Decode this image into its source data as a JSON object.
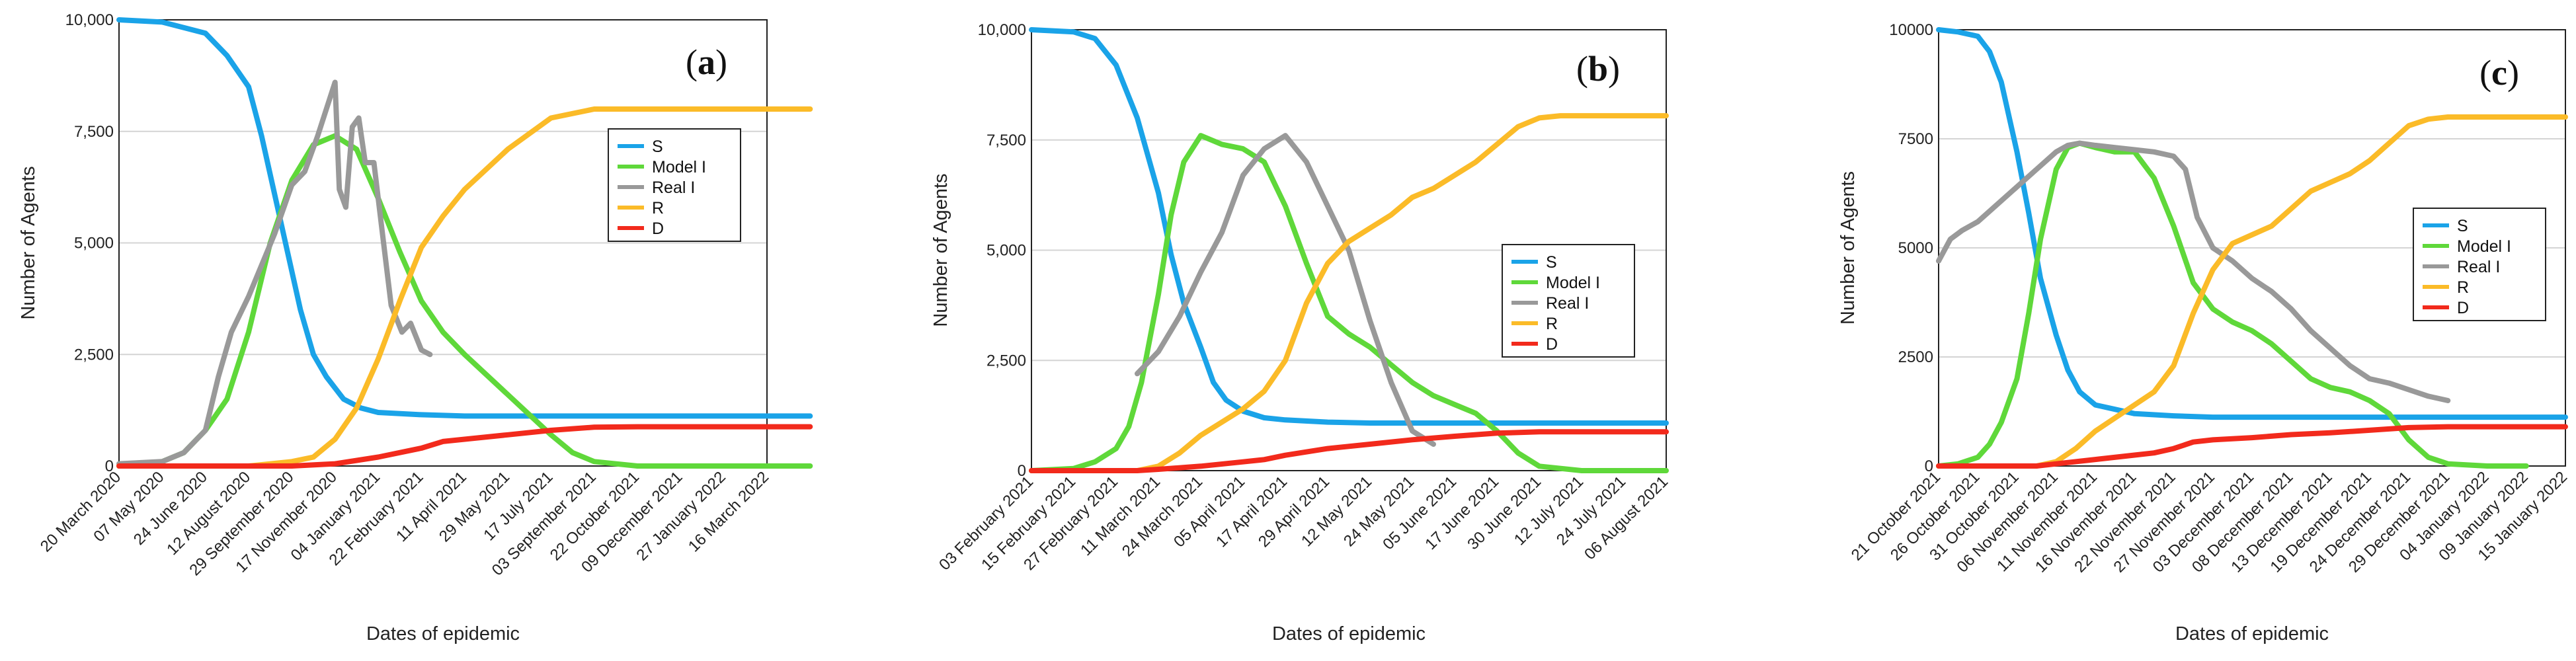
{
  "chart_data": [
    {
      "type": "line",
      "panel_label": "a",
      "xlabel": "Dates of epidemic",
      "ylabel": "Number of Agents",
      "ylim": [
        0,
        10000
      ],
      "grid": true,
      "legend_position": "middle-right",
      "y_ticks": [
        "0",
        "2,500",
        "5,000",
        "7,500",
        "10,000"
      ],
      "x_ticks": [
        "20 March 2020",
        "07 May 2020",
        "24 June 2020",
        "12 August 2020",
        "29 September 2020",
        "17 November 2020",
        "04 January 2021",
        "22 February 2021",
        "11 April 2021",
        "29 May 2021",
        "17 July 2021",
        "03 September 2021",
        "22 October 2021",
        "09 December 2021",
        "27 January 2022",
        "16 March 2022"
      ],
      "series": [
        {
          "name": "S",
          "color": "#1aa3e8",
          "x": [
            0,
            1,
            2,
            2.5,
            3,
            3.3,
            3.6,
            3.9,
            4.2,
            4.5,
            4.8,
            5.2,
            5.6,
            6,
            7,
            8,
            16
          ],
          "y": [
            10000,
            9950,
            9700,
            9200,
            8500,
            7400,
            6100,
            4800,
            3500,
            2500,
            2000,
            1500,
            1300,
            1200,
            1150,
            1120,
            1120
          ]
        },
        {
          "name": "Model I",
          "color": "#5fd83a",
          "x": [
            0,
            1,
            1.5,
            2,
            2.5,
            3,
            3.5,
            4,
            4.5,
            5,
            5.5,
            6,
            6.5,
            7,
            7.5,
            8,
            9,
            10,
            10.5,
            11,
            12,
            13,
            16
          ],
          "y": [
            0,
            100,
            300,
            800,
            1500,
            3000,
            5000,
            6400,
            7200,
            7400,
            7100,
            6000,
            4800,
            3700,
            3000,
            2500,
            1600,
            700,
            300,
            100,
            0,
            0,
            0
          ]
        },
        {
          "name": "Real I",
          "color": "#999999",
          "x": [
            0,
            1,
            1.5,
            2,
            2.3,
            2.6,
            3,
            3.3,
            3.6,
            4,
            4.3,
            4.6,
            5,
            5.1,
            5.25,
            5.4,
            5.55,
            5.7,
            5.9,
            6.1,
            6.3,
            6.55,
            6.75,
            7,
            7.2
          ],
          "y": [
            50,
            100,
            300,
            800,
            2000,
            3000,
            3800,
            4500,
            5200,
            6300,
            6600,
            7400,
            8600,
            6200,
            5800,
            7600,
            7800,
            6800,
            6800,
            5200,
            3600,
            3000,
            3200,
            2600,
            2500
          ]
        },
        {
          "name": "R",
          "color": "#fbbb28",
          "x": [
            0,
            3,
            4,
            4.5,
            5,
            5.5,
            6,
            6.5,
            7,
            7.5,
            8,
            9,
            10,
            11,
            11.5,
            12,
            16
          ],
          "y": [
            0,
            0,
            100,
            200,
            600,
            1300,
            2400,
            3700,
            4900,
            5600,
            6200,
            7100,
            7800,
            8000,
            8000,
            8000,
            8000
          ]
        },
        {
          "name": "D",
          "color": "#f22a1c",
          "x": [
            0,
            4,
            5,
            6,
            7,
            7.5,
            8,
            9,
            10,
            11,
            12,
            13,
            16
          ],
          "y": [
            0,
            0,
            50,
            200,
            400,
            550,
            600,
            700,
            800,
            870,
            880,
            880,
            880
          ]
        }
      ]
    },
    {
      "type": "line",
      "panel_label": "b",
      "xlabel": "Dates of epidemic",
      "ylabel": "Number of Agents",
      "ylim": [
        0,
        10000
      ],
      "grid": true,
      "legend_position": "lower-right",
      "y_ticks": [
        "0",
        "2,500",
        "5,000",
        "7,500",
        "10,000"
      ],
      "x_ticks": [
        "03 February 2021",
        "15 February 2021",
        "27 February 2021",
        "11 March 2021",
        "24 March 2021",
        "05 April 2021",
        "17 April 2021",
        "29 April 2021",
        "12 May 2021",
        "24 May 2021",
        "05 June 2021",
        "17 June 2021",
        "30 June 2021",
        "12 July 2021",
        "24 July 2021",
        "06 August 2021"
      ],
      "series": [
        {
          "name": "S",
          "color": "#1aa3e8",
          "x": [
            0,
            1,
            1.5,
            2,
            2.5,
            3,
            3.3,
            3.6,
            4,
            4.3,
            4.6,
            5,
            5.5,
            6,
            7,
            8,
            15
          ],
          "y": [
            10000,
            9950,
            9800,
            9200,
            8000,
            6300,
            4900,
            3800,
            2800,
            2000,
            1600,
            1350,
            1200,
            1150,
            1100,
            1080,
            1080
          ]
        },
        {
          "name": "Model I",
          "color": "#5fd83a",
          "x": [
            0,
            1,
            1.5,
            2,
            2.3,
            2.6,
            3,
            3.3,
            3.6,
            4,
            4.5,
            5,
            5.5,
            6,
            6.5,
            7,
            7.5,
            8,
            8.5,
            9,
            9.5,
            10,
            10.5,
            11,
            11.5,
            12,
            13,
            15
          ],
          "y": [
            0,
            50,
            200,
            500,
            1000,
            2000,
            4000,
            5800,
            7000,
            7600,
            7400,
            7300,
            7000,
            6000,
            4700,
            3500,
            3100,
            2800,
            2400,
            2000,
            1700,
            1500,
            1300,
            900,
            400,
            100,
            0,
            0
          ]
        },
        {
          "name": "Real I",
          "color": "#999999",
          "x": [
            2.5,
            3,
            3.5,
            4,
            4.5,
            5,
            5.5,
            6,
            6.5,
            7,
            7.5,
            8,
            8.5,
            9,
            9.5
          ],
          "y": [
            2200,
            2700,
            3500,
            4500,
            5400,
            6700,
            7300,
            7600,
            7000,
            6000,
            5000,
            3400,
            2000,
            900,
            600
          ]
        },
        {
          "name": "R",
          "color": "#fbbb28",
          "x": [
            0,
            2.5,
            3,
            3.5,
            4,
            4.5,
            5,
            5.5,
            6,
            6.5,
            7,
            7.5,
            8,
            8.5,
            9,
            9.5,
            10,
            10.5,
            11,
            11.5,
            12,
            12.5,
            13,
            15
          ],
          "y": [
            0,
            0,
            100,
            400,
            800,
            1100,
            1400,
            1800,
            2500,
            3800,
            4700,
            5200,
            5500,
            5800,
            6200,
            6400,
            6700,
            7000,
            7400,
            7800,
            8000,
            8050,
            8050,
            8050
          ]
        },
        {
          "name": "D",
          "color": "#f22a1c",
          "x": [
            0,
            2.5,
            3,
            4,
            5,
            5.5,
            6,
            7,
            8,
            9,
            10,
            11,
            12,
            13,
            15
          ],
          "y": [
            0,
            0,
            30,
            100,
            200,
            250,
            350,
            500,
            600,
            700,
            780,
            850,
            880,
            880,
            880
          ]
        }
      ]
    },
    {
      "type": "line",
      "panel_label": "c",
      "xlabel": "Dates of epidemic",
      "ylabel": "Number of Agents",
      "ylim": [
        0,
        10000
      ],
      "grid": true,
      "legend_position": "middle-right",
      "y_ticks": [
        "0",
        "2500",
        "5000",
        "7500",
        "10000"
      ],
      "x_ticks": [
        "21 October 2021",
        "26 October 2021",
        "31 October 2021",
        "06 November 2021",
        "11 November 2021",
        "16 November 2021",
        "22 November 2021",
        "27 November 2021",
        "03 December 2021",
        "08 December 2021",
        "13 December 2021",
        "19 December 2021",
        "24 December 2021",
        "29 December 2021",
        "04 January 2022",
        "09 January 2022",
        "15 January 2022"
      ],
      "series": [
        {
          "name": "S",
          "color": "#1aa3e8",
          "x": [
            0,
            0.5,
            1,
            1.3,
            1.6,
            2,
            2.3,
            2.6,
            3,
            3.3,
            3.6,
            4,
            4.5,
            5,
            6,
            7,
            16
          ],
          "y": [
            10000,
            9950,
            9850,
            9500,
            8800,
            7200,
            5800,
            4300,
            3000,
            2200,
            1700,
            1400,
            1300,
            1200,
            1150,
            1120,
            1120
          ]
        },
        {
          "name": "Model I",
          "color": "#5fd83a",
          "x": [
            0,
            0.5,
            1,
            1.3,
            1.6,
            2,
            2.3,
            2.6,
            3,
            3.3,
            3.6,
            4,
            4.5,
            5,
            5.5,
            6,
            6.5,
            7,
            7.5,
            8,
            8.5,
            9,
            9.5,
            10,
            10.5,
            11,
            11.5,
            12,
            12.5,
            13,
            14,
            15
          ],
          "y": [
            0,
            50,
            200,
            500,
            1000,
            2000,
            3500,
            5200,
            6800,
            7300,
            7400,
            7300,
            7200,
            7200,
            6600,
            5500,
            4200,
            3600,
            3300,
            3100,
            2800,
            2400,
            2000,
            1800,
            1700,
            1500,
            1200,
            600,
            200,
            50,
            0,
            0
          ]
        },
        {
          "name": "Real I",
          "color": "#999999",
          "x": [
            0,
            0.3,
            0.6,
            1,
            1.5,
            2,
            2.5,
            3,
            3.3,
            3.6,
            4,
            4.5,
            5,
            5.5,
            6,
            6.3,
            6.6,
            7,
            7.5,
            8,
            8.5,
            9,
            9.5,
            10,
            10.5,
            11,
            11.5,
            12,
            12.5,
            13
          ],
          "y": [
            4700,
            5200,
            5400,
            5600,
            6000,
            6400,
            6800,
            7200,
            7350,
            7400,
            7350,
            7300,
            7250,
            7200,
            7100,
            6800,
            5700,
            5000,
            4700,
            4300,
            4000,
            3600,
            3100,
            2700,
            2300,
            2000,
            1900,
            1750,
            1600,
            1500
          ]
        },
        {
          "name": "R",
          "color": "#fbbb28",
          "x": [
            0,
            2.5,
            3,
            3.5,
            4,
            4.5,
            5,
            5.5,
            6,
            6.5,
            7,
            7.5,
            8,
            8.5,
            9,
            9.5,
            10,
            10.5,
            11,
            11.5,
            12,
            12.5,
            13,
            13.5,
            14,
            16
          ],
          "y": [
            0,
            0,
            100,
            400,
            800,
            1100,
            1400,
            1700,
            2300,
            3500,
            4500,
            5100,
            5300,
            5500,
            5900,
            6300,
            6500,
            6700,
            7000,
            7400,
            7800,
            7950,
            8000,
            8000,
            8000,
            8000
          ]
        },
        {
          "name": "D",
          "color": "#f22a1c",
          "x": [
            0,
            2.5,
            3,
            4,
            5,
            5.5,
            6,
            6.5,
            7,
            8,
            9,
            10,
            11,
            12,
            13,
            16
          ],
          "y": [
            0,
            0,
            50,
            150,
            250,
            300,
            400,
            550,
            600,
            650,
            720,
            760,
            820,
            880,
            900,
            900
          ]
        }
      ]
    }
  ]
}
